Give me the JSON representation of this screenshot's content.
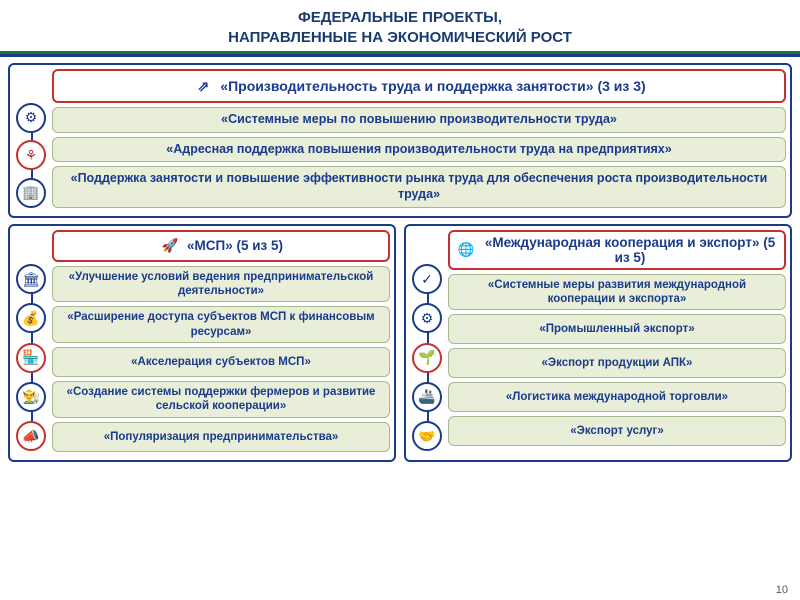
{
  "header": {
    "line1": "ФЕДЕРАЛЬНЫЕ ПРОЕКТЫ,",
    "line2": "НАПРАВЛЕННЫЕ НА ЭКОНОМИЧЕСКИЙ РОСТ"
  },
  "colors": {
    "primary_blue": "#1a3b8c",
    "accent_red": "#c43030",
    "item_bg": "#e8eed8",
    "item_border": "#a8b890",
    "title_color": "#1a3b6e",
    "green": "#0a7d3a"
  },
  "section_top": {
    "title": "«Производительность труда и поддержка занятости» (3 из 3)",
    "icon": "⇗",
    "items": [
      {
        "label": "«Системные меры по повышению производительности труда»",
        "icon": "⚙"
      },
      {
        "label": "«Адресная поддержка повышения производительности труда на предприятиях»",
        "icon": "⚘"
      },
      {
        "label": "«Поддержка занятости и повышение эффективности рынка труда для обеспечения роста производительности труда»",
        "icon": "🏢"
      }
    ]
  },
  "section_left": {
    "title": "«МСП» (5 из 5)",
    "icon": "🚀",
    "items": [
      {
        "label": "«Улучшение условий ведения предпринимательской деятельности»",
        "icon": "🏛"
      },
      {
        "label": "«Расширение доступа субъектов МСП к финансовым ресурсам»",
        "icon": "💰"
      },
      {
        "label": "«Акселерация субъектов МСП»",
        "icon": "🏪"
      },
      {
        "label": "«Создание системы поддержки фермеров и развитие сельской кооперации»",
        "icon": "👨‍🌾"
      },
      {
        "label": "«Популяризация предпринимательства»",
        "icon": "📣"
      }
    ]
  },
  "section_right": {
    "title": "«Международная кооперация и экспорт» (5 из 5)",
    "icon": "🌐",
    "items": [
      {
        "label": "«Системные меры развития международной кооперации и экспорта»",
        "icon": "✓"
      },
      {
        "label": "«Промышленный экспорт»",
        "icon": "⚙"
      },
      {
        "label": "«Экспорт продукции АПК»",
        "icon": "🌱"
      },
      {
        "label": "«Логистика международной торговли»",
        "icon": "🚢"
      },
      {
        "label": "«Экспорт услуг»",
        "icon": "🤝"
      }
    ]
  },
  "page_number": "10"
}
